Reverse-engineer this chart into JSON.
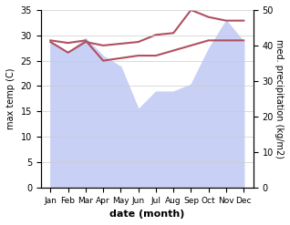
{
  "months": [
    "Jan",
    "Feb",
    "Mar",
    "Apr",
    "May",
    "Jun",
    "Jul",
    "Aug",
    "Sep",
    "Oct",
    "Nov",
    "Dec"
  ],
  "temp": [
    29,
    28.5,
    29,
    25,
    25.5,
    26,
    26,
    27,
    28,
    29,
    29,
    29
  ],
  "precip": [
    41,
    38,
    42,
    37,
    34,
    22,
    27,
    27,
    29,
    39,
    47,
    41
  ],
  "precip_line": [
    41,
    38,
    41,
    40,
    40.5,
    41,
    43,
    43.5,
    50,
    48,
    47,
    47
  ],
  "temp_color": "#b05060",
  "precip_fill_color": "#c8d0f5",
  "xlabel": "date (month)",
  "ylabel_left": "max temp (C)",
  "ylabel_right": "med. precipitation (kg/m2)",
  "ylim_left": [
    0,
    35
  ],
  "ylim_right": [
    0,
    50
  ],
  "yticks_left": [
    0,
    5,
    10,
    15,
    20,
    25,
    30,
    35
  ],
  "yticks_right": [
    0,
    10,
    20,
    30,
    40,
    50
  ]
}
